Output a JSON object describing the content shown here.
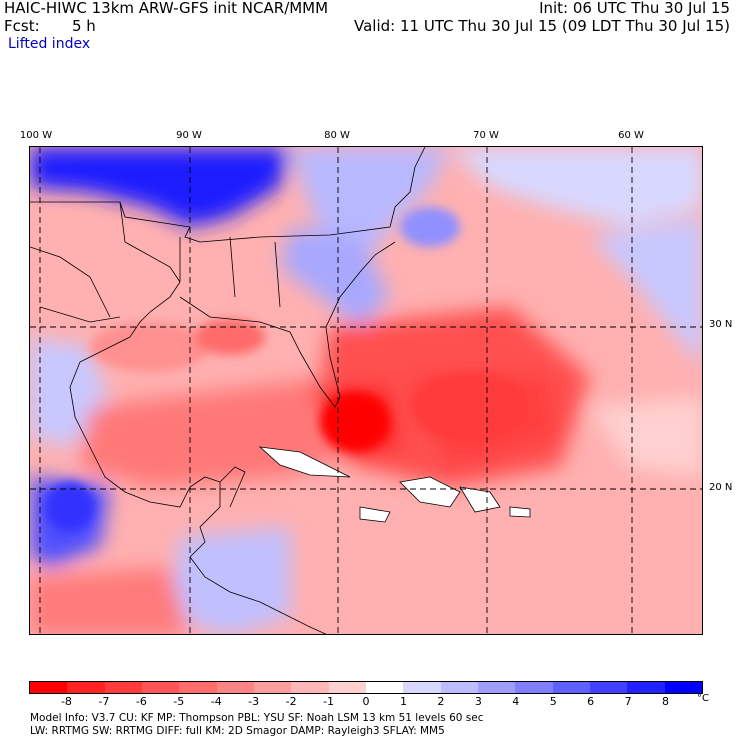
{
  "header": {
    "title": "HAIC-HIWC 13km ARW-GFS init   NCAR/MMM",
    "fcst_label": "Fcst:",
    "fcst_value": "5 h",
    "init": "Init: 06 UTC Thu 30 Jul 15",
    "valid": "Valid: 11 UTC Thu 30 Jul 15 (09 LDT Thu 30 Jul 15)",
    "field": "Lifted index"
  },
  "map": {
    "lon_labels": [
      "100 W",
      "90 W",
      "80 W",
      "70 W",
      "60 W"
    ],
    "lat_labels": [
      "30 N",
      "20 N"
    ]
  },
  "colorbar": {
    "unit": "°C",
    "ticks": [
      "-8",
      "-7",
      "-6",
      "-5",
      "-4",
      "-3",
      "-2",
      "-1",
      "0",
      "1",
      "2",
      "3",
      "4",
      "5",
      "6",
      "7",
      "8"
    ],
    "colors": [
      "#ff0000",
      "#ff2222",
      "#ff3c3c",
      "#ff5555",
      "#ff6d6d",
      "#ff8484",
      "#ff9d9d",
      "#ffb6b6",
      "#ffd0d0",
      "#ffffff",
      "#d8d8ff",
      "#bcbcff",
      "#9e9eff",
      "#7f7fff",
      "#6060ff",
      "#4141ff",
      "#2222ff",
      "#0000ff"
    ]
  },
  "footer": {
    "line1": "Model Info: V3.7      CU: KF      MP: Thompson      PBL: YSU        SF: Noah LSM      13 km    51 levels    60 sec",
    "line2": "LW: RRTMG    SW: RRTMG   DIFF: full    KM: 2D Smagor DAMP: Rayleigh3   SFLAY: MM5"
  }
}
